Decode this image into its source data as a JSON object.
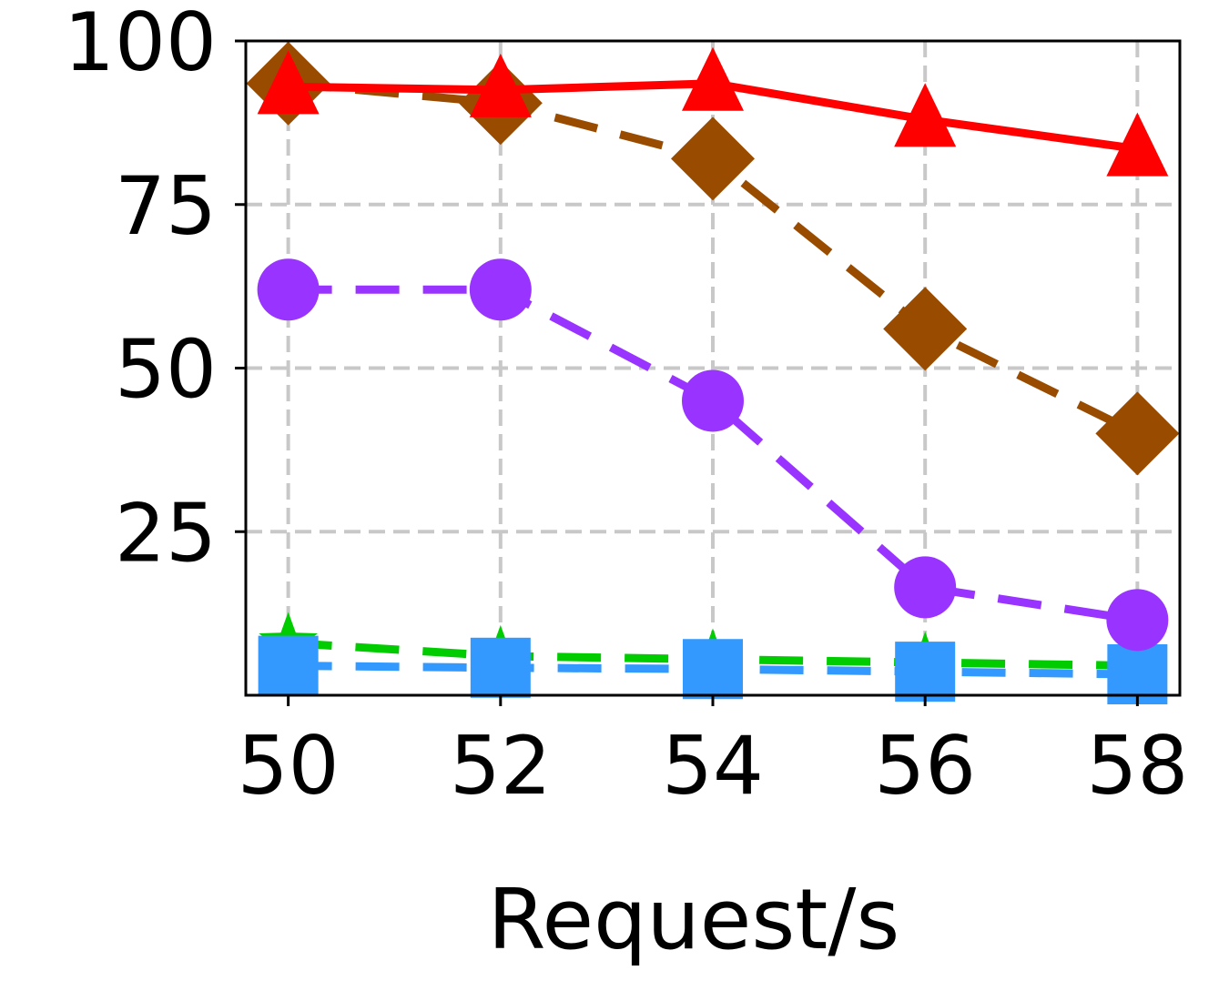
{
  "chart_data": {
    "type": "line",
    "title": "",
    "xlabel": "Request/s",
    "ylabel": "",
    "x": [
      50,
      52,
      54,
      56,
      58
    ],
    "xticks": [
      "50",
      "52",
      "54",
      "56",
      "58"
    ],
    "yticks": [
      "25",
      "50",
      "75",
      "100"
    ],
    "xlim": [
      49.6,
      58.4
    ],
    "ylim": [
      0,
      100
    ],
    "grid": true,
    "series": [
      {
        "values": [
          93,
          92.5,
          93.5,
          88,
          83.5
        ],
        "color": "#ff0000",
        "dash": "solid",
        "marker": "triangle"
      },
      {
        "values": [
          93.5,
          90.5,
          82,
          56,
          40
        ],
        "color": "#994c00",
        "dash": "dashed",
        "marker": "diamond"
      },
      {
        "values": [
          62,
          62,
          45,
          16.5,
          11.5
        ],
        "color": "#9933ff",
        "dash": "dashed",
        "marker": "circle"
      },
      {
        "values": [
          4.5,
          4.2,
          4.0,
          3.6,
          3.2
        ],
        "color": "#3399ff",
        "dash": "dashed",
        "marker": "square"
      },
      {
        "values": [
          8.0,
          6.0,
          5.5,
          5.0,
          4.5
        ],
        "color": "#00cc00",
        "dash": "dashed",
        "marker": "star"
      }
    ]
  }
}
